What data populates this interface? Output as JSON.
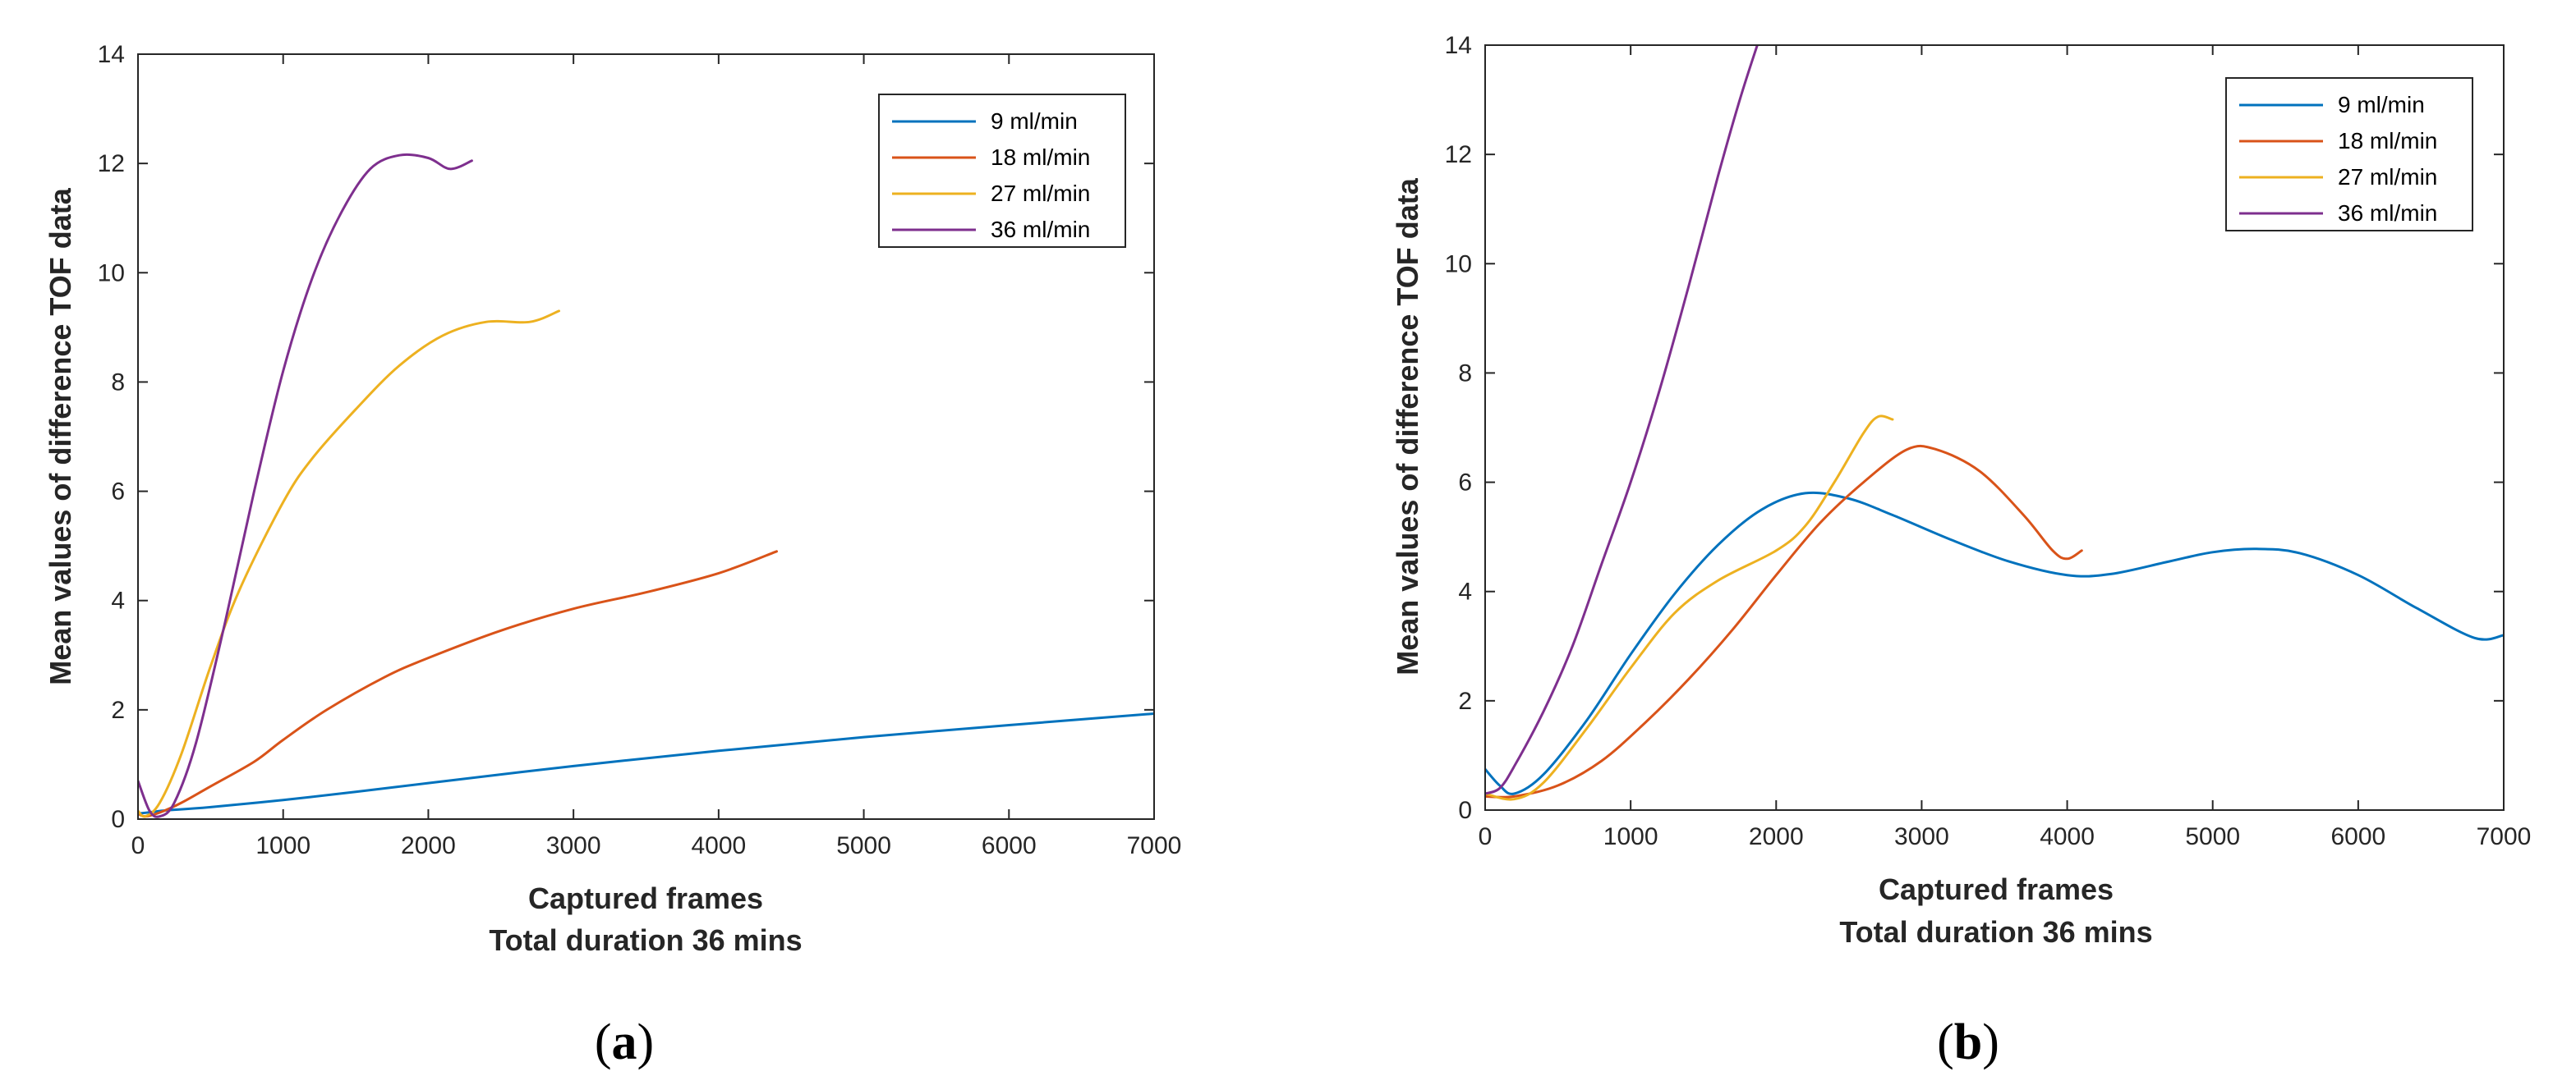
{
  "chart_data": [
    {
      "type": "line",
      "panel_label": "a",
      "title": "",
      "xlabel": "Captured frames",
      "xlabel_sub": "Total duration 36 mins",
      "ylabel": "Mean values of difference TOF data",
      "xlim": [
        0,
        7000
      ],
      "ylim": [
        0,
        14
      ],
      "xticks": [
        0,
        1000,
        2000,
        3000,
        4000,
        5000,
        6000,
        7000
      ],
      "yticks": [
        0,
        2,
        4,
        6,
        8,
        10,
        12,
        14
      ],
      "grid": false,
      "legend_position": "top-right",
      "series": [
        {
          "name": "9 ml/min",
          "color": "#0072BD",
          "points": [
            [
              0,
              0.1
            ],
            [
              100,
              0.13
            ],
            [
              200,
              0.16
            ],
            [
              500,
              0.22
            ],
            [
              1000,
              0.35
            ],
            [
              1500,
              0.5
            ],
            [
              2000,
              0.66
            ],
            [
              3000,
              0.97
            ],
            [
              4000,
              1.25
            ],
            [
              5000,
              1.5
            ],
            [
              6000,
              1.72
            ],
            [
              7000,
              1.93
            ]
          ]
        },
        {
          "name": "18 ml/min",
          "color": "#D95319",
          "points": [
            [
              0,
              0.1
            ],
            [
              50,
              0.05
            ],
            [
              150,
              0.12
            ],
            [
              300,
              0.3
            ],
            [
              500,
              0.6
            ],
            [
              800,
              1.05
            ],
            [
              1000,
              1.45
            ],
            [
              1300,
              2.0
            ],
            [
              1700,
              2.6
            ],
            [
              2000,
              2.95
            ],
            [
              2500,
              3.45
            ],
            [
              3000,
              3.85
            ],
            [
              3500,
              4.15
            ],
            [
              4000,
              4.5
            ],
            [
              4400,
              4.9
            ]
          ]
        },
        {
          "name": "27 ml/min",
          "color": "#EDB120",
          "points": [
            [
              0,
              0.15
            ],
            [
              50,
              0.05
            ],
            [
              150,
              0.3
            ],
            [
              300,
              1.2
            ],
            [
              500,
              2.8
            ],
            [
              700,
              4.2
            ],
            [
              1000,
              5.8
            ],
            [
              1200,
              6.6
            ],
            [
              1500,
              7.5
            ],
            [
              1800,
              8.3
            ],
            [
              2100,
              8.85
            ],
            [
              2400,
              9.1
            ],
            [
              2700,
              9.1
            ],
            [
              2900,
              9.3
            ]
          ]
        },
        {
          "name": "36 ml/min",
          "color": "#7E2F8E",
          "points": [
            [
              0,
              0.7
            ],
            [
              80,
              0.15
            ],
            [
              150,
              0.05
            ],
            [
              250,
              0.3
            ],
            [
              400,
              1.4
            ],
            [
              600,
              3.6
            ],
            [
              800,
              6.0
            ],
            [
              1000,
              8.2
            ],
            [
              1200,
              9.9
            ],
            [
              1400,
              11.1
            ],
            [
              1600,
              11.9
            ],
            [
              1800,
              12.15
            ],
            [
              2000,
              12.1
            ],
            [
              2150,
              11.9
            ],
            [
              2300,
              12.05
            ]
          ]
        }
      ]
    },
    {
      "type": "line",
      "panel_label": "b",
      "title": "",
      "xlabel": "Captured frames",
      "xlabel_sub": "Total duration 36 mins",
      "ylabel": "Mean values of difference TOF data",
      "xlim": [
        0,
        7000
      ],
      "ylim": [
        0,
        14
      ],
      "xticks": [
        0,
        1000,
        2000,
        3000,
        4000,
        5000,
        6000,
        7000
      ],
      "yticks": [
        0,
        2,
        4,
        6,
        8,
        10,
        12,
        14
      ],
      "grid": false,
      "legend_position": "top-right",
      "series": [
        {
          "name": "9 ml/min",
          "color": "#0072BD",
          "points": [
            [
              0,
              0.75
            ],
            [
              100,
              0.45
            ],
            [
              200,
              0.3
            ],
            [
              400,
              0.65
            ],
            [
              700,
              1.65
            ],
            [
              1000,
              2.85
            ],
            [
              1300,
              3.95
            ],
            [
              1600,
              4.85
            ],
            [
              1900,
              5.5
            ],
            [
              2200,
              5.8
            ],
            [
              2500,
              5.7
            ],
            [
              2800,
              5.4
            ],
            [
              3200,
              4.95
            ],
            [
              3600,
              4.55
            ],
            [
              4000,
              4.3
            ],
            [
              4300,
              4.32
            ],
            [
              4700,
              4.55
            ],
            [
              5000,
              4.72
            ],
            [
              5300,
              4.78
            ],
            [
              5600,
              4.7
            ],
            [
              6000,
              4.3
            ],
            [
              6400,
              3.7
            ],
            [
              6800,
              3.15
            ],
            [
              7000,
              3.2
            ]
          ]
        },
        {
          "name": "18 ml/min",
          "color": "#D95319",
          "points": [
            [
              0,
              0.25
            ],
            [
              200,
              0.25
            ],
            [
              500,
              0.45
            ],
            [
              800,
              0.9
            ],
            [
              1100,
              1.6
            ],
            [
              1400,
              2.4
            ],
            [
              1700,
              3.3
            ],
            [
              2000,
              4.3
            ],
            [
              2300,
              5.25
            ],
            [
              2600,
              6.0
            ],
            [
              2900,
              6.6
            ],
            [
              3100,
              6.6
            ],
            [
              3400,
              6.2
            ],
            [
              3700,
              5.4
            ],
            [
              3900,
              4.75
            ],
            [
              4000,
              4.6
            ],
            [
              4100,
              4.75
            ]
          ]
        },
        {
          "name": "27 ml/min",
          "color": "#EDB120",
          "points": [
            [
              0,
              0.3
            ],
            [
              200,
              0.2
            ],
            [
              400,
              0.5
            ],
            [
              700,
              1.5
            ],
            [
              1000,
              2.6
            ],
            [
              1300,
              3.6
            ],
            [
              1600,
              4.2
            ],
            [
              2000,
              4.75
            ],
            [
              2200,
              5.2
            ],
            [
              2400,
              6.0
            ],
            [
              2600,
              6.9
            ],
            [
              2700,
              7.2
            ],
            [
              2800,
              7.15
            ]
          ]
        },
        {
          "name": "36 ml/min",
          "color": "#7E2F8E",
          "points": [
            [
              0,
              0.3
            ],
            [
              100,
              0.4
            ],
            [
              200,
              0.8
            ],
            [
              400,
              1.8
            ],
            [
              600,
              3.0
            ],
            [
              800,
              4.5
            ],
            [
              1000,
              6.0
            ],
            [
              1200,
              7.7
            ],
            [
              1400,
              9.6
            ],
            [
              1600,
              11.6
            ],
            [
              1750,
              13.0
            ],
            [
              1870,
              14.0
            ]
          ]
        }
      ]
    }
  ]
}
